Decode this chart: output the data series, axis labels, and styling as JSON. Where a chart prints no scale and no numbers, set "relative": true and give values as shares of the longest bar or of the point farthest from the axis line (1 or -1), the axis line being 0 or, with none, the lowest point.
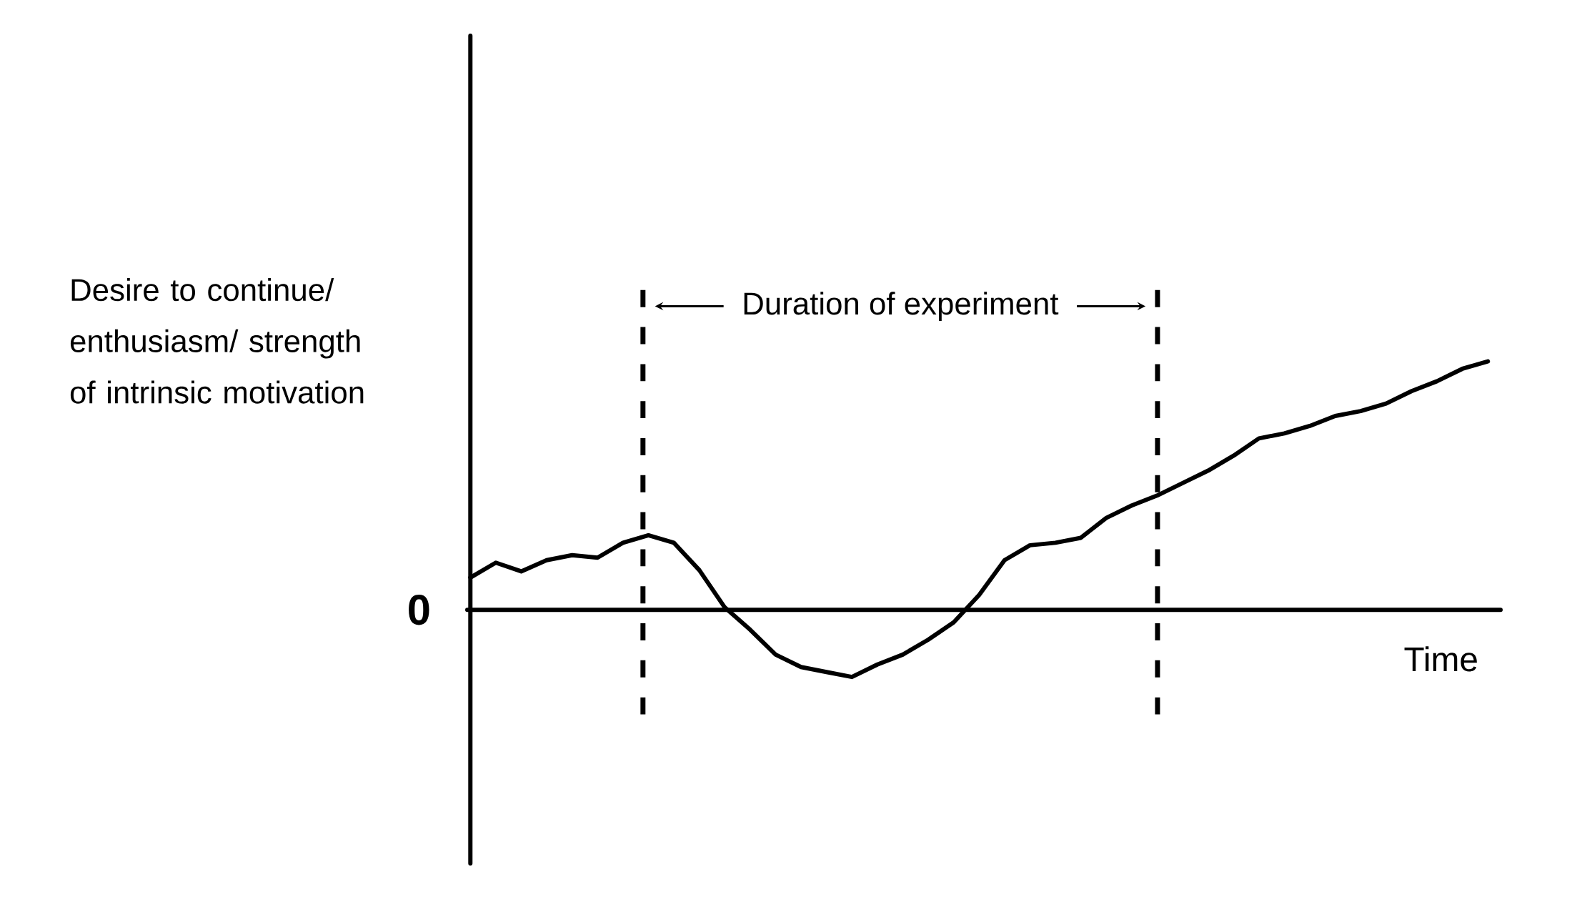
{
  "chart_data": {
    "type": "line",
    "relative": true,
    "color": "#000000",
    "line_style": "solid",
    "categories": [
      null,
      null,
      null,
      null,
      null,
      null,
      null,
      null,
      null,
      null,
      null,
      null,
      null,
      null,
      null,
      null,
      null,
      null,
      null,
      null,
      null,
      null,
      null,
      null,
      null,
      null,
      null,
      null,
      null,
      null,
      null,
      null,
      null,
      null,
      null,
      null,
      null,
      null,
      null,
      null,
      null
    ],
    "values": [
      0.13,
      0.19,
      0.155,
      0.2,
      0.22,
      0.21,
      0.27,
      0.3,
      0.27,
      0.16,
      0.01,
      -0.08,
      -0.18,
      -0.23,
      -0.25,
      -0.27,
      -0.22,
      -0.18,
      -0.12,
      -0.05,
      0.06,
      0.2,
      0.26,
      0.27,
      0.29,
      0.37,
      0.42,
      0.46,
      0.51,
      0.56,
      0.62,
      0.69,
      0.71,
      0.74,
      0.78,
      0.8,
      0.83,
      0.88,
      0.92,
      0.97,
      1.0
    ],
    "xlabel": "Time",
    "ylabel": "Desire to continue/ enthusiasm/ strength of intrinsic motivation",
    "annotations": [
      "0",
      "Duration of experiment"
    ]
  }
}
